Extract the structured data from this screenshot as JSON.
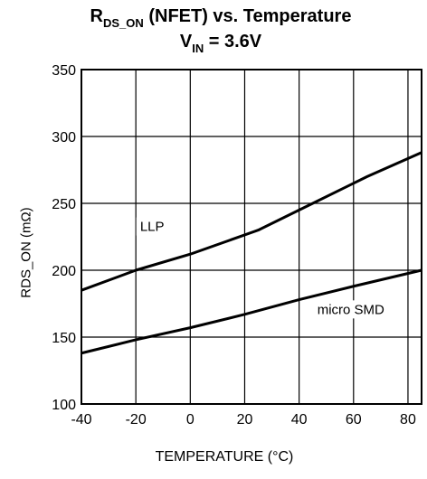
{
  "title": {
    "line1_main_a": "R",
    "line1_sub": "DS_ON",
    "line1_main_b": " (NFET) vs. Temperature",
    "line2_main_a": "V",
    "line2_sub": "IN",
    "line2_main_b": " = 3.6V"
  },
  "chart_data": {
    "type": "line",
    "xlabel": "TEMPERATURE (°C)",
    "ylabel": "RDS_ON (mΩ)",
    "xlim": [
      -40,
      85
    ],
    "ylim": [
      100,
      350
    ],
    "x_ticks": [
      -40,
      -20,
      0,
      20,
      40,
      60,
      80
    ],
    "y_ticks": [
      100,
      150,
      200,
      250,
      300,
      350
    ],
    "grid": true,
    "series": [
      {
        "name": "LLP",
        "x": [
          -40,
          -20,
          0,
          25,
          45,
          65,
          85
        ],
        "y": [
          185,
          200,
          212,
          230,
          250,
          270,
          288
        ]
      },
      {
        "name": "micro SMD",
        "x": [
          -40,
          -20,
          0,
          20,
          40,
          60,
          85
        ],
        "y": [
          138,
          148,
          157,
          167,
          178,
          188,
          200
        ]
      }
    ],
    "annotations": [
      {
        "text": "LLP",
        "x": -14,
        "y": 230
      },
      {
        "text": "micro SMD",
        "x": 59,
        "y": 168
      }
    ]
  }
}
